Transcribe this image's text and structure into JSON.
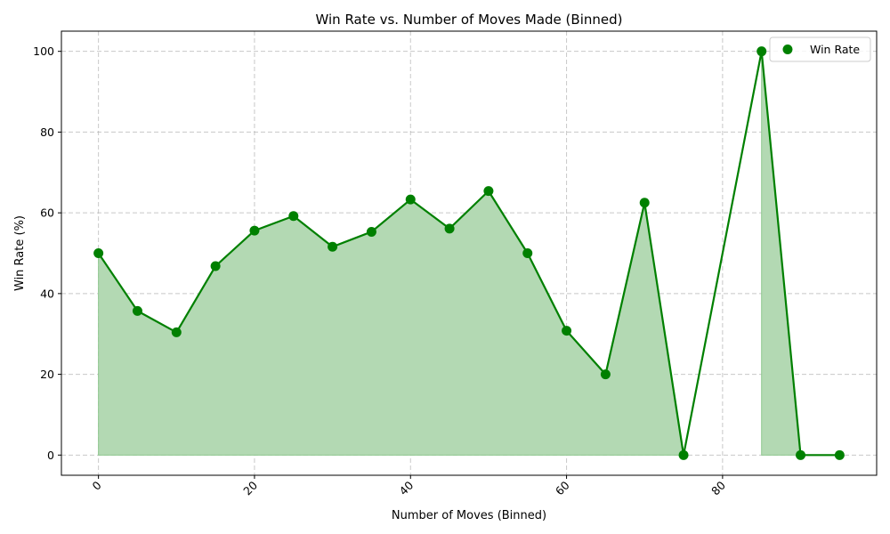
{
  "chart_data": {
    "type": "line",
    "title": "Win Rate vs. Number of Moves Made (Binned)",
    "xlabel": "Number of Moves (Binned)",
    "ylabel": "Win Rate (%)",
    "xlim": [
      -4.75,
      99.75
    ],
    "ylim": [
      -5,
      105
    ],
    "xticks": [
      0,
      20,
      40,
      60,
      80
    ],
    "yticks": [
      0,
      20,
      40,
      60,
      80,
      100
    ],
    "grid": true,
    "legend_position": "top-right",
    "color": "#008000",
    "fill_color": "#b3d9b3",
    "series": [
      {
        "name": "Win Rate",
        "x": [
          0,
          5,
          10,
          15,
          20,
          25,
          30,
          35,
          40,
          45,
          50,
          55,
          60,
          65,
          70,
          75,
          85,
          90,
          95
        ],
        "y": [
          50,
          35.7,
          30.4,
          46.8,
          55.6,
          59.2,
          51.6,
          55.3,
          63.3,
          56.1,
          65.4,
          50,
          30.8,
          20,
          62.5,
          0,
          100,
          0,
          0
        ]
      }
    ]
  }
}
